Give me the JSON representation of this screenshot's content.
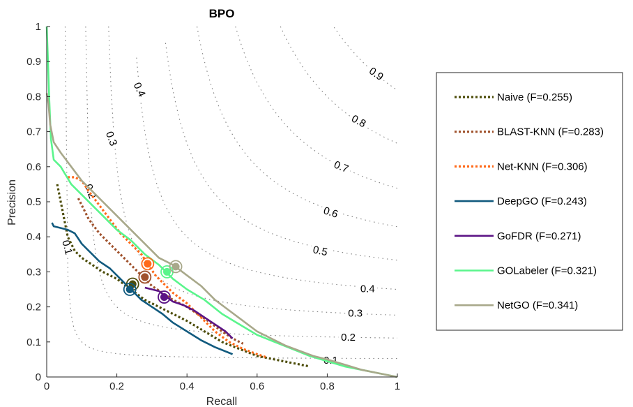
{
  "chart_data": {
    "type": "line",
    "title": "BPO",
    "xlabel": "Recall",
    "ylabel": "Precision",
    "xlim": [
      0,
      1
    ],
    "ylim": [
      0,
      1
    ],
    "x_ticks": [
      "0",
      "0.2",
      "0.4",
      "0.6",
      "0.8",
      "1"
    ],
    "y_ticks": [
      "0",
      "0.1",
      "0.2",
      "0.3",
      "0.4",
      "0.5",
      "0.6",
      "0.7",
      "0.8",
      "0.9",
      "1"
    ],
    "legend_position": "outside-right",
    "grid": false,
    "iso_f_curves": {
      "style": "dotted",
      "color": "#7f7f7f",
      "levels": [
        0.1,
        0.2,
        0.3,
        0.4,
        0.5,
        0.6,
        0.7,
        0.8,
        0.9
      ],
      "labels": [
        {
          "text": "0.1",
          "x": 0.81,
          "y": 0.048,
          "angle": 0
        },
        {
          "text": "0.2",
          "x": 0.86,
          "y": 0.114,
          "angle": 0
        },
        {
          "text": "0.3",
          "x": 0.88,
          "y": 0.182,
          "angle": 0
        },
        {
          "text": "0.4",
          "x": 0.915,
          "y": 0.252,
          "angle": 0
        },
        {
          "text": "0.5",
          "x": 0.78,
          "y": 0.36,
          "angle": 12
        },
        {
          "text": "0.6",
          "x": 0.81,
          "y": 0.47,
          "angle": 18
        },
        {
          "text": "0.7",
          "x": 0.84,
          "y": 0.6,
          "angle": 22
        },
        {
          "text": "0.8",
          "x": 0.89,
          "y": 0.73,
          "angle": 28
        },
        {
          "text": "0.9",
          "x": 0.94,
          "y": 0.865,
          "angle": 35
        },
        {
          "text": "0.1",
          "x": 0.059,
          "y": 0.37,
          "angle": 75
        },
        {
          "text": "0.2",
          "x": 0.125,
          "y": 0.53,
          "angle": 70
        },
        {
          "text": "0.3",
          "x": 0.185,
          "y": 0.68,
          "angle": 70
        },
        {
          "text": "0.4",
          "x": 0.265,
          "y": 0.82,
          "angle": 65
        }
      ]
    },
    "series": [
      {
        "name": "Naive (F=0.255)",
        "color": "#4d4d0a",
        "dash": "dotted",
        "x": [
          0.03,
          0.04,
          0.05,
          0.06,
          0.08,
          0.1,
          0.13,
          0.16,
          0.2,
          0.24,
          0.28,
          0.32,
          0.36,
          0.4,
          0.45,
          0.5,
          0.55,
          0.6,
          0.65,
          0.7,
          0.75
        ],
        "y": [
          0.55,
          0.5,
          0.45,
          0.4,
          0.36,
          0.34,
          0.32,
          0.3,
          0.28,
          0.25,
          0.22,
          0.2,
          0.18,
          0.16,
          0.13,
          0.1,
          0.08,
          0.06,
          0.05,
          0.04,
          0.03
        ],
        "fmax_point": {
          "x": 0.245,
          "y": 0.265
        }
      },
      {
        "name": "BLAST-KNN (F=0.283)",
        "color": "#a0522d",
        "dash": "dotted",
        "x": [
          0.09,
          0.1,
          0.12,
          0.15,
          0.18,
          0.21,
          0.24,
          0.27,
          0.3,
          0.33,
          0.36,
          0.4,
          0.43,
          0.46,
          0.5,
          0.53,
          0.56
        ],
        "y": [
          0.51,
          0.49,
          0.45,
          0.41,
          0.38,
          0.35,
          0.32,
          0.29,
          0.26,
          0.24,
          0.22,
          0.2,
          0.18,
          0.16,
          0.13,
          0.11,
          0.095
        ],
        "fmax_point": {
          "x": 0.28,
          "y": 0.285
        }
      },
      {
        "name": "Net-KNN (F=0.306)",
        "color": "#ff6a1a",
        "dash": "dotted",
        "x": [
          0.06,
          0.08,
          0.1,
          0.12,
          0.15,
          0.18,
          0.21,
          0.24,
          0.27,
          0.29,
          0.31,
          0.33,
          0.36,
          0.4,
          0.44,
          0.48,
          0.52,
          0.56,
          0.6,
          0.63
        ],
        "y": [
          0.57,
          0.57,
          0.56,
          0.53,
          0.49,
          0.45,
          0.41,
          0.38,
          0.35,
          0.32,
          0.29,
          0.27,
          0.24,
          0.21,
          0.17,
          0.13,
          0.1,
          0.08,
          0.065,
          0.055
        ],
        "fmax_point": {
          "x": 0.288,
          "y": 0.323
        }
      },
      {
        "name": "DeepGO (F=0.243)",
        "color": "#115a7e",
        "dash": "solid",
        "x": [
          0.015,
          0.02,
          0.04,
          0.06,
          0.08,
          0.1,
          0.12,
          0.15,
          0.18,
          0.21,
          0.24,
          0.27,
          0.3,
          0.33,
          0.36,
          0.4,
          0.44,
          0.48,
          0.53
        ],
        "y": [
          0.44,
          0.43,
          0.425,
          0.42,
          0.41,
          0.38,
          0.36,
          0.33,
          0.31,
          0.28,
          0.25,
          0.22,
          0.2,
          0.18,
          0.155,
          0.13,
          0.105,
          0.085,
          0.065
        ],
        "fmax_point": {
          "x": 0.237,
          "y": 0.25
        }
      },
      {
        "name": "GoFDR (F=0.271)",
        "color": "#5c1486",
        "dash": "solid",
        "x": [
          0.28,
          0.3,
          0.32,
          0.34,
          0.36,
          0.39,
          0.42,
          0.45,
          0.48,
          0.51,
          0.53
        ],
        "y": [
          0.255,
          0.25,
          0.245,
          0.23,
          0.215,
          0.205,
          0.19,
          0.17,
          0.15,
          0.13,
          0.11
        ],
        "fmax_point": {
          "x": 0.335,
          "y": 0.228
        }
      },
      {
        "name": "GOLabeler (F=0.321)",
        "color": "#5af58c",
        "dash": "solid",
        "x": [
          0.0,
          0.003,
          0.007,
          0.012,
          0.02,
          0.04,
          0.07,
          0.1,
          0.13,
          0.16,
          0.2,
          0.24,
          0.28,
          0.32,
          0.36,
          0.4,
          0.45,
          0.5,
          0.55,
          0.6,
          0.65,
          0.7,
          0.75,
          0.8,
          0.85,
          0.9,
          0.95,
          1.0
        ],
        "y": [
          1.0,
          0.92,
          0.8,
          0.68,
          0.62,
          0.6,
          0.55,
          0.52,
          0.49,
          0.46,
          0.42,
          0.39,
          0.35,
          0.32,
          0.28,
          0.25,
          0.22,
          0.18,
          0.15,
          0.12,
          0.1,
          0.08,
          0.06,
          0.045,
          0.03,
          0.02,
          0.01,
          0.0
        ],
        "fmax_point": {
          "x": 0.343,
          "y": 0.3
        }
      },
      {
        "name": "NetGO (F=0.341)",
        "color": "#a8a88a",
        "dash": "solid",
        "x": [
          0.0,
          0.005,
          0.01,
          0.02,
          0.04,
          0.07,
          0.1,
          0.13,
          0.16,
          0.2,
          0.24,
          0.28,
          0.32,
          0.36,
          0.4,
          0.44,
          0.48,
          0.52,
          0.56,
          0.6,
          0.64,
          0.68,
          0.72,
          0.76,
          0.8,
          0.85,
          0.9,
          0.95,
          1.0
        ],
        "y": [
          0.81,
          0.78,
          0.72,
          0.67,
          0.64,
          0.6,
          0.56,
          0.53,
          0.5,
          0.46,
          0.42,
          0.38,
          0.34,
          0.32,
          0.29,
          0.26,
          0.22,
          0.19,
          0.16,
          0.13,
          0.11,
          0.09,
          0.075,
          0.06,
          0.05,
          0.035,
          0.02,
          0.01,
          0.0
        ],
        "fmax_point": {
          "x": 0.368,
          "y": 0.315
        }
      }
    ]
  }
}
